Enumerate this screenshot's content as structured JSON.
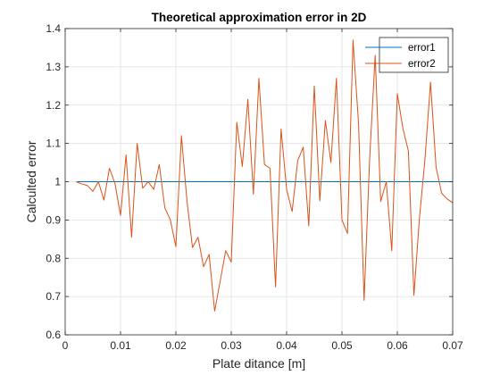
{
  "chart_data": {
    "type": "line",
    "title": "Theoretical approximation error in 2D",
    "xlabel": "Plate ditance [m]",
    "ylabel": "Calculted error",
    "xlim": [
      0,
      0.07
    ],
    "ylim": [
      0.6,
      1.4
    ],
    "xticks": [
      0,
      0.01,
      0.02,
      0.03,
      0.04,
      0.05,
      0.06,
      0.07
    ],
    "xtick_labels": [
      "0",
      "0.01",
      "0.02",
      "0.03",
      "0.04",
      "0.05",
      "0.06",
      "0.07"
    ],
    "yticks": [
      0.6,
      0.7,
      0.8,
      0.9,
      1.0,
      1.1,
      1.2,
      1.3,
      1.4
    ],
    "ytick_labels": [
      "0.6",
      "0.7",
      "0.8",
      "0.9",
      "1",
      "1.1",
      "1.2",
      "1.3",
      "1.4"
    ],
    "grid": true,
    "legend_position": "top-right",
    "series": [
      {
        "name": "error1",
        "color": "#0072BD",
        "x": [
          0.002,
          0.07
        ],
        "y": [
          1.0,
          1.0
        ]
      },
      {
        "name": "error2",
        "color": "#D95319",
        "x": [
          0.002,
          0.003,
          0.004,
          0.005,
          0.006,
          0.007,
          0.008,
          0.009,
          0.01,
          0.011,
          0.012,
          0.013,
          0.014,
          0.015,
          0.016,
          0.017,
          0.018,
          0.019,
          0.02,
          0.021,
          0.022,
          0.023,
          0.024,
          0.025,
          0.026,
          0.027,
          0.028,
          0.029,
          0.03,
          0.031,
          0.032,
          0.033,
          0.034,
          0.035,
          0.036,
          0.037,
          0.038,
          0.039,
          0.04,
          0.041,
          0.042,
          0.043,
          0.044,
          0.045,
          0.046,
          0.047,
          0.048,
          0.049,
          0.05,
          0.051,
          0.052,
          0.053,
          0.054,
          0.055,
          0.056,
          0.057,
          0.058,
          0.059,
          0.06,
          0.061,
          0.062,
          0.063,
          0.064,
          0.065,
          0.066,
          0.067,
          0.068,
          0.069,
          0.07
        ],
        "y": [
          1.0,
          0.994,
          0.99,
          0.975,
          1.0,
          0.952,
          1.035,
          0.995,
          0.912,
          1.07,
          0.855,
          1.1,
          0.983,
          1.0,
          0.98,
          1.045,
          0.932,
          0.9,
          0.83,
          1.12,
          0.95,
          0.828,
          0.855,
          0.778,
          0.81,
          0.662,
          0.74,
          0.82,
          0.79,
          1.155,
          1.04,
          1.215,
          0.967,
          1.27,
          1.045,
          1.035,
          0.725,
          1.138,
          0.98,
          0.922,
          1.055,
          1.09,
          0.885,
          1.25,
          0.95,
          1.16,
          1.05,
          1.27,
          0.9,
          0.865,
          1.37,
          1.15,
          0.69,
          1.06,
          1.33,
          0.948,
          1.0,
          0.82,
          1.23,
          1.14,
          1.08,
          0.703,
          0.905,
          1.06,
          1.26,
          1.038,
          0.97,
          0.955,
          0.945
        ]
      }
    ]
  }
}
